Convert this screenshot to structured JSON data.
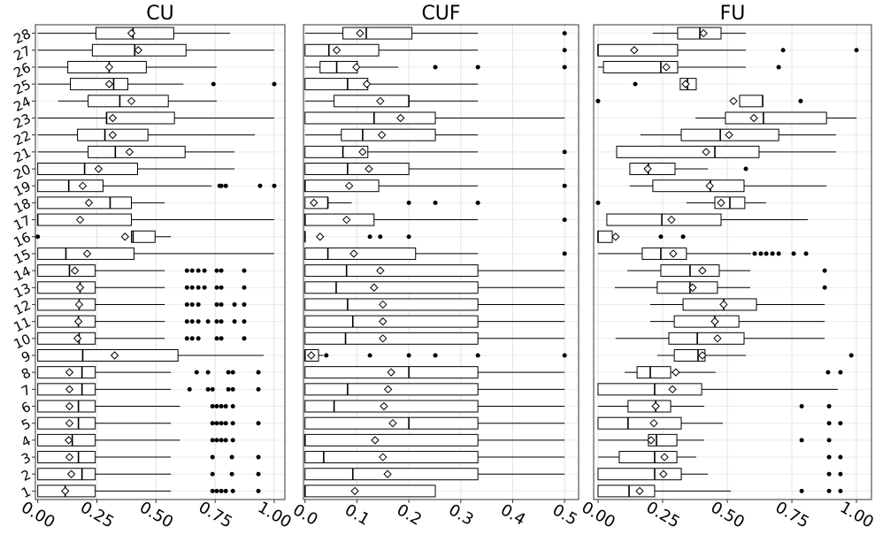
{
  "chart_data": [
    {
      "type": "boxplot",
      "title": "CU",
      "color": "#000000",
      "grid": true,
      "categories": [
        "1",
        "2",
        "3",
        "4",
        "5",
        "6",
        "7",
        "8",
        "9",
        "10",
        "11",
        "12",
        "13",
        "14",
        "15",
        "16",
        "17",
        "18",
        "19",
        "20",
        "21",
        "22",
        "23",
        "24",
        "25",
        "26",
        "27",
        "28"
      ],
      "xlim": [
        -0.01,
        1.045
      ],
      "xticks": [
        {
          "value": 0,
          "label": "0.00"
        },
        0.25,
        {
          "value": 0.5,
          "label": "0.50"
        },
        0.75,
        {
          "value": 1,
          "label": "1.00"
        }
      ],
      "stats": [
        [
          0,
          0,
          0.116,
          0.243,
          0.563
        ],
        [
          0,
          0,
          0.187,
          0.243,
          0.563
        ],
        [
          0,
          0,
          0.172,
          0.243,
          0.563
        ],
        [
          0,
          0,
          0.146,
          0.243,
          0.601
        ],
        [
          0,
          0,
          0.172,
          0.243,
          0.563
        ],
        [
          0,
          0,
          0.172,
          0.243,
          0.601
        ],
        [
          0,
          0,
          0.187,
          0.243,
          0.563
        ],
        [
          0,
          0,
          0.187,
          0.243,
          0.563
        ],
        [
          0,
          0,
          0.19,
          0.593,
          0.955
        ],
        [
          0,
          0,
          0.175,
          0.243,
          0.537
        ],
        [
          0,
          0,
          0.172,
          0.243,
          0.537
        ],
        [
          0,
          0,
          0.175,
          0.243,
          0.537
        ],
        [
          0,
          0,
          0.179,
          0.243,
          0.537
        ],
        [
          0,
          0,
          0.134,
          0.243,
          0.537
        ],
        [
          0,
          0,
          0.119,
          0.407,
          1
        ],
        [
          0.396,
          0.396,
          0.403,
          0.496,
          0.563
        ],
        [
          0,
          0,
          0,
          0.396,
          1
        ],
        [
          0,
          0,
          0.306,
          0.396,
          0.537
        ],
        [
          0,
          0,
          0.131,
          0.276,
          0.735
        ],
        [
          0,
          0,
          0.198,
          0.422,
          0.832
        ],
        [
          0,
          0.213,
          0.328,
          0.623,
          0.832
        ],
        [
          0,
          0.168,
          0.284,
          0.466,
          0.918
        ],
        [
          0,
          0.291,
          0.291,
          0.578,
          1
        ],
        [
          0.086,
          0.213,
          0.347,
          0.552,
          0.757
        ],
        [
          0,
          0.138,
          0.321,
          0.381,
          0.616
        ],
        [
          0,
          0.127,
          0.302,
          0.459,
          0.757
        ],
        [
          0,
          0.231,
          0.41,
          0.627,
          1
        ],
        [
          0,
          0.246,
          0.403,
          0.575,
          0.813
        ]
      ],
      "means": [
        0.116,
        0.142,
        0.134,
        0.131,
        0.134,
        0.134,
        0.134,
        0.134,
        0.325,
        0.168,
        0.172,
        0.175,
        0.179,
        0.157,
        0.209,
        0.369,
        0.179,
        0.216,
        0.19,
        0.257,
        0.388,
        0.317,
        0.317,
        0.396,
        0.302,
        0.302,
        0.425,
        0.396
      ],
      "outliers": [
        [
          0.739,
          0.757,
          0.776,
          0.795,
          0.825,
          0.933
        ],
        [
          0.739,
          0.821,
          0.933
        ],
        [
          0.739,
          0.821,
          0.933
        ],
        [
          0.739,
          0.757,
          0.776,
          0.795,
          0.825
        ],
        [
          0.739,
          0.757,
          0.776,
          0.795,
          0.825,
          0.933
        ],
        [
          0.739,
          0.757,
          0.776,
          0.795,
          0.825
        ],
        [
          0.642,
          0.72,
          0.739,
          0.806,
          0.825,
          0.933
        ],
        [
          0.672,
          0.72,
          0.806,
          0.825,
          0.933
        ],
        [],
        [
          0.631,
          0.653,
          0.679,
          0.757,
          0.776,
          0.873
        ],
        [
          0.631,
          0.653,
          0.679,
          0.72,
          0.757,
          0.776,
          0.832,
          0.873
        ],
        [
          0.631,
          0.653,
          0.679,
          0.757,
          0.776,
          0.832,
          0.873
        ],
        [
          0.631,
          0.653,
          0.679,
          0.705,
          0.757,
          0.776,
          0.873
        ],
        [
          0.631,
          0.653,
          0.679,
          0.705,
          0.757,
          0.776,
          0.873
        ],
        [],
        [
          0
        ],
        [],
        [],
        [
          0.769,
          0.776,
          0.795,
          0.94,
          1
        ],
        [],
        [],
        [],
        [],
        [],
        [
          0.743,
          1
        ],
        [],
        [],
        []
      ]
    },
    {
      "type": "boxplot",
      "title": "CUF",
      "color": "#000000",
      "grid": true,
      "xlim": [
        -0.003,
        0.527
      ],
      "xticks": [
        {
          "value": 0,
          "label": "0.0"
        },
        0.1,
        0.2,
        0.3,
        0.4,
        0.5
      ],
      "stats": [
        [
          0,
          0,
          0,
          0.251,
          0.251
        ],
        [
          0,
          0,
          0.092,
          0.333,
          0.5
        ],
        [
          0,
          0,
          0.036,
          0.333,
          0.5
        ],
        [
          0,
          0,
          0,
          0.333,
          0.5
        ],
        [
          0,
          0,
          0.2,
          0.333,
          0.5
        ],
        [
          0,
          0,
          0.056,
          0.333,
          0.5
        ],
        [
          0,
          0,
          0.082,
          0.333,
          0.5
        ],
        [
          0,
          0,
          0.2,
          0.333,
          0.5
        ],
        [
          0,
          0,
          0,
          0.026,
          0.035
        ],
        [
          0,
          0,
          0.078,
          0.333,
          0.5
        ],
        [
          0,
          0,
          0.092,
          0.333,
          0.5
        ],
        [
          0,
          0,
          0.082,
          0.333,
          0.5
        ],
        [
          0,
          0,
          0.06,
          0.333,
          0.5
        ],
        [
          0,
          0,
          0.08,
          0.333,
          0.5
        ],
        [
          0,
          0,
          0.044,
          0.213,
          0.333
        ],
        [
          0,
          0,
          0,
          0,
          0
        ],
        [
          0,
          0,
          0,
          0.133,
          0.333
        ],
        [
          0,
          0,
          0.044,
          0.044,
          0.09
        ],
        [
          0,
          0,
          0,
          0.142,
          0.333
        ],
        [
          0,
          0,
          0.082,
          0.2,
          0.5
        ],
        [
          0,
          0,
          0.073,
          0.121,
          0.333
        ],
        [
          0,
          0.07,
          0.111,
          0.251,
          0.333
        ],
        [
          0,
          0,
          0.133,
          0.251,
          0.5
        ],
        [
          0,
          0.056,
          0.2,
          0.2,
          0.333
        ],
        [
          0,
          0,
          0.082,
          0.121,
          0.333
        ],
        [
          0,
          0.029,
          0.061,
          0.101,
          0.18
        ],
        [
          0,
          0,
          0.046,
          0.142,
          0.333
        ],
        [
          0,
          0.073,
          0.118,
          0.206,
          0.333
        ]
      ],
      "means": [
        0.096,
        0.159,
        0.15,
        0.135,
        0.169,
        0.152,
        0.16,
        0.166,
        0.012,
        0.15,
        0.15,
        0.15,
        0.133,
        0.145,
        0.094,
        0.029,
        0.08,
        0.017,
        0.085,
        0.123,
        0.111,
        0.148,
        0.184,
        0.145,
        0.119,
        0.099,
        0.061,
        0.106
      ],
      "outliers": [
        [],
        [],
        [],
        [],
        [],
        [],
        [],
        [],
        [
          0.041,
          0.125,
          0.2,
          0.251,
          0.333,
          0.5
        ],
        [],
        [],
        [],
        [],
        [],
        [
          0.5
        ],
        [
          0.125,
          0.145,
          0.2
        ],
        [
          0.5
        ],
        [
          0.2,
          0.251,
          0.333
        ],
        [
          0.5
        ],
        [],
        [
          0.5
        ],
        [],
        [],
        [],
        [],
        [
          0.251,
          0.333,
          0.5
        ],
        [
          0.5
        ],
        [
          0.5
        ]
      ]
    },
    {
      "type": "boxplot",
      "title": "FU",
      "color": "#000000",
      "grid": true,
      "xlim": [
        -0.017,
        1.058
      ],
      "xticks": [
        {
          "value": 0,
          "label": "0.00"
        },
        0.25,
        {
          "value": 0.5,
          "label": "0.50"
        },
        0.75,
        {
          "value": 1,
          "label": "1.00"
        }
      ],
      "stats": [
        [
          0,
          0,
          0.12,
          0.219,
          0.514
        ],
        [
          0,
          0,
          0.219,
          0.322,
          0.425
        ],
        [
          0,
          0.082,
          0.219,
          0.305,
          0.38
        ],
        [
          0,
          0.195,
          0.226,
          0.305,
          0.411
        ],
        [
          0,
          0,
          0.116,
          0.322,
          0.483
        ],
        [
          0,
          0.116,
          0.223,
          0.281,
          0.411
        ],
        [
          0,
          0,
          0.219,
          0.401,
          0.928
        ],
        [
          0.103,
          0.151,
          0.202,
          0.281,
          0.455
        ],
        [
          0.229,
          0.295,
          0.387,
          0.414,
          0.572
        ],
        [
          0.068,
          0.274,
          0.384,
          0.565,
          0.877
        ],
        [
          0.202,
          0.295,
          0.452,
          0.545,
          0.877
        ],
        [
          0.202,
          0.329,
          0.486,
          0.613,
          0.877
        ],
        [
          0.065,
          0.229,
          0.356,
          0.462,
          0.589
        ],
        [
          0.113,
          0.243,
          0.356,
          0.469,
          0.589
        ],
        [
          0,
          0.171,
          0.243,
          0.342,
          0.592
        ],
        [
          0,
          0,
          0,
          0.055,
          0.055
        ],
        [
          0.034,
          0.034,
          0.247,
          0.476,
          0.812
        ],
        [
          0.342,
          0.452,
          0.51,
          0.568,
          0.65
        ],
        [
          0.123,
          0.212,
          0.435,
          0.565,
          0.884
        ],
        [
          0.123,
          0.123,
          0.195,
          0.298,
          0.425
        ],
        [
          0.072,
          0.072,
          0.452,
          0.623,
          0.921
        ],
        [
          0.164,
          0.322,
          0.473,
          0.699,
          0.921
        ],
        [
          0.377,
          0.493,
          0.64,
          0.884,
          1
        ],
        [
          0.548,
          0.548,
          0.637,
          0.637,
          0.637
        ],
        [
          0.318,
          0.318,
          0.346,
          0.38,
          0.38
        ],
        [
          0,
          0.021,
          0.243,
          0.308,
          0.572
        ],
        [
          0,
          0,
          0,
          0.308,
          0.572
        ],
        [
          0.212,
          0.308,
          0.394,
          0.476,
          0.572
        ]
      ],
      "means": [
        0.161,
        0.253,
        0.257,
        0.205,
        0.216,
        0.223,
        0.288,
        0.301,
        0.404,
        0.462,
        0.452,
        0.486,
        0.366,
        0.404,
        0.291,
        0.068,
        0.284,
        0.476,
        0.432,
        0.192,
        0.418,
        0.507,
        0.603,
        0.524,
        0.339,
        0.264,
        0.14,
        0.408
      ],
      "outliers": [
        [
          0.788,
          0.894,
          0.938
        ],
        [
          0.894,
          0.938
        ],
        [
          0.894,
          0.938
        ],
        [
          0.788,
          0.894
        ],
        [
          0.894,
          0.938
        ],
        [
          0.788,
          0.894
        ],
        [],
        [
          0.89,
          0.938
        ],
        [
          0.98
        ],
        [],
        [],
        [],
        [
          0.877
        ],
        [
          0.877
        ],
        [
          0.606,
          0.63,
          0.651,
          0.675,
          0.699,
          0.757,
          0.805
        ],
        [
          0.243,
          0.329
        ],
        [],
        [
          0
        ],
        [],
        [
          0.572
        ],
        [],
        [],
        [],
        [
          0,
          0.784
        ],
        [
          0.144
        ],
        [
          0.699
        ],
        [
          0.716,
          1
        ],
        []
      ]
    }
  ]
}
